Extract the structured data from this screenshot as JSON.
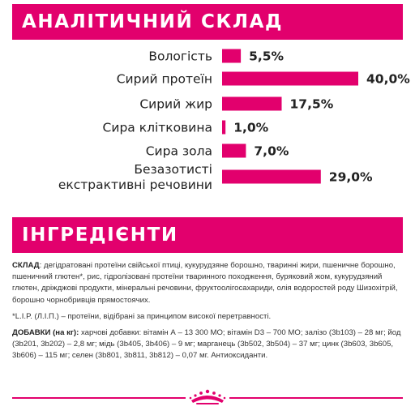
{
  "banners": {
    "analysis_title": "АНАЛІТИЧНИЙ СКЛАД",
    "ingredients_title": "ІНГРЕДІЄНТИ"
  },
  "colors": {
    "accent": "#e2006d",
    "text": "#222222"
  },
  "chart_data": {
    "type": "bar",
    "orientation": "horizontal",
    "categories": [
      [
        "Вологість"
      ],
      [
        "Сирий протеїн"
      ],
      [
        "Сирий жир"
      ],
      [
        "Сира клітковина"
      ],
      [
        "Сира зола"
      ],
      [
        "Безазотисті",
        "екстрактивні речовини"
      ]
    ],
    "values": [
      5.5,
      40.0,
      17.5,
      1.0,
      7.0,
      29.0
    ],
    "value_labels": [
      "5,5%",
      "40,0%",
      "17,5%",
      "1,0%",
      "7,0%",
      "29,0%"
    ],
    "unit": "%",
    "title": "",
    "xlabel": "",
    "ylabel": "",
    "grid": false,
    "legend": "none"
  },
  "ingredients": {
    "composition_label": "СКЛАД",
    "composition_text": ": дегідратовані протеїни свійської птиці, кукурудзяне борошно, тваринні жири, пшеничне борошно, пшеничний глютен*, рис, гідролізовані протеїни тваринного походження, бурякoвий жом, кукурудзяний глютен, дріжджові продукти, мінеральні речовини, фруктоолігосахариди, олія водоростей роду Шизохітрій, борошно чорнобривців прямостоячих.",
    "footnote": "*L.I.P. (Л.І.П.) – протеїни, відібрані за принципом високої перетравності.",
    "additives_label": "ДОБАВКИ (на кг):",
    "additives_text": " харчові добавки: вітамін А – 13 300 МО; вітамін D3 – 700 МО; залізо (3b103) – 28 мг; йод (3b201, 3b202) – 2,8 мг; мідь (3b405, 3b406) – 9 мг; марганець (3b502, 3b504) – 37 мг; цинк (3b603, 3b605, 3b606) – 115 мг; селен (3b801, 3b811, 3b812) – 0,07 мг. Антиоксиданти."
  },
  "footer": {
    "logo_icon": "royal-canin-crown-icon"
  }
}
